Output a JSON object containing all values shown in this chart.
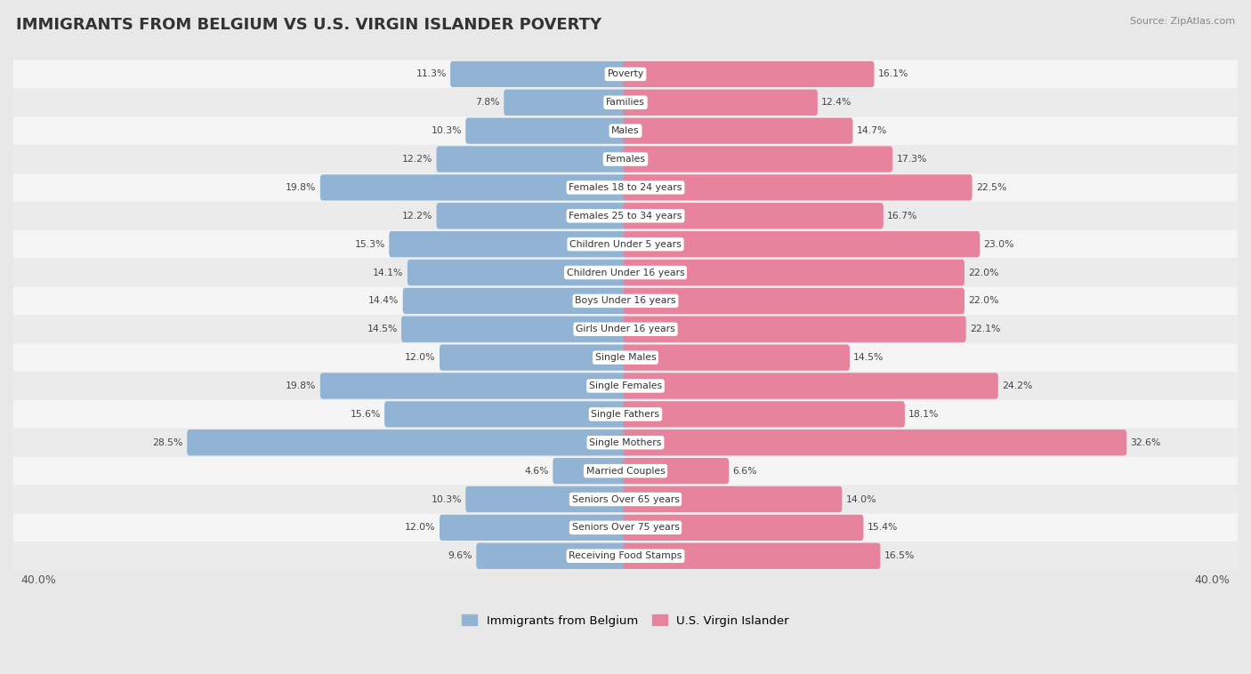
{
  "title": "IMMIGRANTS FROM BELGIUM VS U.S. VIRGIN ISLANDER POVERTY",
  "source": "Source: ZipAtlas.com",
  "categories": [
    "Poverty",
    "Families",
    "Males",
    "Females",
    "Females 18 to 24 years",
    "Females 25 to 34 years",
    "Children Under 5 years",
    "Children Under 16 years",
    "Boys Under 16 years",
    "Girls Under 16 years",
    "Single Males",
    "Single Females",
    "Single Fathers",
    "Single Mothers",
    "Married Couples",
    "Seniors Over 65 years",
    "Seniors Over 75 years",
    "Receiving Food Stamps"
  ],
  "belgium_values": [
    11.3,
    7.8,
    10.3,
    12.2,
    19.8,
    12.2,
    15.3,
    14.1,
    14.4,
    14.5,
    12.0,
    19.8,
    15.6,
    28.5,
    4.6,
    10.3,
    12.0,
    9.6
  ],
  "usvi_values": [
    16.1,
    12.4,
    14.7,
    17.3,
    22.5,
    16.7,
    23.0,
    22.0,
    22.0,
    22.1,
    14.5,
    24.2,
    18.1,
    32.6,
    6.6,
    14.0,
    15.4,
    16.5
  ],
  "belgium_color": "#92b4d4",
  "usvi_color": "#e8839e",
  "background_color": "#e8e8e8",
  "bar_bg_even": "#f5f5f5",
  "bar_bg_odd": "#ebebeb",
  "axis_max": 40.0,
  "legend_label_belgium": "Immigrants from Belgium",
  "legend_label_usvi": "U.S. Virgin Islander",
  "title_fontsize": 13,
  "source_fontsize": 8,
  "label_fontsize": 7.8,
  "value_fontsize": 7.8
}
